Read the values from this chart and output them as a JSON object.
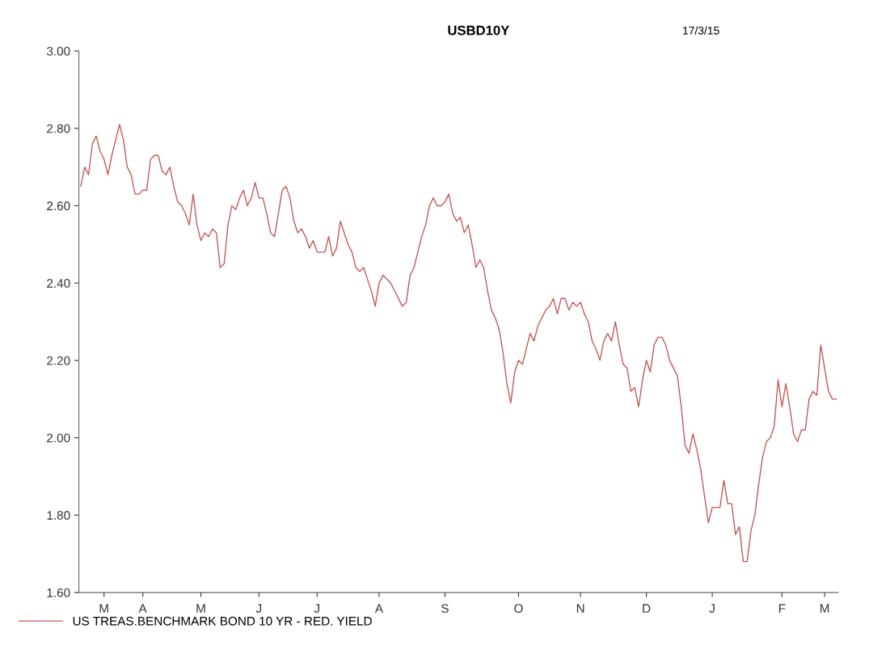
{
  "chart_data": {
    "type": "line",
    "title": "USBD10Y",
    "annotations": [
      "17/3/15"
    ],
    "categories": [
      null,
      null,
      null,
      null,
      null,
      null,
      "M",
      null,
      null,
      null,
      null,
      null,
      null,
      null,
      null,
      null,
      "A",
      null,
      null,
      null,
      null,
      null,
      null,
      null,
      null,
      null,
      null,
      null,
      null,
      null,
      null,
      "M",
      null,
      null,
      null,
      null,
      null,
      null,
      null,
      null,
      null,
      null,
      null,
      null,
      null,
      null,
      "J",
      null,
      null,
      null,
      null,
      null,
      null,
      null,
      null,
      null,
      null,
      null,
      null,
      null,
      null,
      "J",
      null,
      null,
      null,
      null,
      null,
      null,
      null,
      null,
      null,
      null,
      null,
      null,
      null,
      null,
      null,
      "A",
      null,
      null,
      null,
      null,
      null,
      null,
      null,
      null,
      null,
      null,
      null,
      null,
      null,
      null,
      null,
      null,
      "S",
      null,
      null,
      null,
      null,
      null,
      null,
      null,
      null,
      null,
      null,
      null,
      null,
      null,
      null,
      null,
      null,
      null,
      null,
      "O",
      null,
      null,
      null,
      null,
      null,
      null,
      null,
      null,
      null,
      null,
      null,
      null,
      null,
      null,
      null,
      "N",
      null,
      null,
      null,
      null,
      null,
      null,
      null,
      null,
      null,
      null,
      null,
      null,
      null,
      null,
      null,
      null,
      "D",
      null,
      null,
      null,
      null,
      null,
      null,
      null,
      null,
      null,
      null,
      null,
      null,
      null,
      null,
      null,
      null,
      "J",
      null,
      null,
      null,
      null,
      null,
      null,
      null,
      null,
      null,
      null,
      null,
      null,
      null,
      null,
      null,
      null,
      null,
      "F",
      null,
      null,
      null,
      null,
      null,
      null,
      null,
      null,
      null,
      null,
      "M",
      null,
      null,
      null
    ],
    "ylim": [
      1.6,
      3.0
    ],
    "yticks": [
      {
        "value": 1.6,
        "label": "1.60"
      },
      {
        "value": 1.8,
        "label": "1.80"
      },
      {
        "value": 2.0,
        "label": "2.00"
      },
      {
        "value": 2.2,
        "label": "2.20"
      },
      {
        "value": 2.4,
        "label": "2.40"
      },
      {
        "value": 2.6,
        "label": "2.60"
      },
      {
        "value": 2.8,
        "label": "2.80"
      },
      {
        "value": 3.0,
        "label": "3.00"
      }
    ],
    "grid": false,
    "legend": "bottom left",
    "series": [
      {
        "name": "US TREAS.BENCHMARK BOND 10 YR - RED. YIELD",
        "color": "#c55a5a",
        "values": [
          2.65,
          2.7,
          2.68,
          2.76,
          2.78,
          2.74,
          2.72,
          2.68,
          2.73,
          2.77,
          2.81,
          2.77,
          2.7,
          2.68,
          2.63,
          2.63,
          2.64,
          2.64,
          2.72,
          2.73,
          2.73,
          2.69,
          2.68,
          2.7,
          2.65,
          2.61,
          2.6,
          2.58,
          2.55,
          2.63,
          2.55,
          2.51,
          2.53,
          2.52,
          2.54,
          2.53,
          2.44,
          2.45,
          2.55,
          2.6,
          2.59,
          2.62,
          2.64,
          2.6,
          2.62,
          2.66,
          2.62,
          2.62,
          2.58,
          2.53,
          2.52,
          2.58,
          2.64,
          2.65,
          2.62,
          2.56,
          2.53,
          2.54,
          2.52,
          2.49,
          2.51,
          2.48,
          2.48,
          2.48,
          2.52,
          2.47,
          2.49,
          2.56,
          2.53,
          2.5,
          2.48,
          2.44,
          2.43,
          2.44,
          2.41,
          2.38,
          2.34,
          2.4,
          2.42,
          2.41,
          2.4,
          2.38,
          2.36,
          2.34,
          2.35,
          2.42,
          2.44,
          2.48,
          2.52,
          2.55,
          2.6,
          2.62,
          2.6,
          2.6,
          2.61,
          2.63,
          2.58,
          2.56,
          2.57,
          2.53,
          2.55,
          2.5,
          2.44,
          2.46,
          2.44,
          2.38,
          2.33,
          2.31,
          2.28,
          2.22,
          2.14,
          2.09,
          2.17,
          2.2,
          2.19,
          2.23,
          2.27,
          2.25,
          2.29,
          2.31,
          2.33,
          2.34,
          2.36,
          2.32,
          2.36,
          2.36,
          2.33,
          2.35,
          2.34,
          2.35,
          2.32,
          2.3,
          2.25,
          2.23,
          2.2,
          2.25,
          2.27,
          2.25,
          2.3,
          2.24,
          2.19,
          2.18,
          2.12,
          2.13,
          2.08,
          2.15,
          2.2,
          2.17,
          2.24,
          2.26,
          2.26,
          2.24,
          2.2,
          2.18,
          2.16,
          2.08,
          1.98,
          1.96,
          2.01,
          1.97,
          1.92,
          1.85,
          1.78,
          1.82,
          1.82,
          1.82,
          1.89,
          1.83,
          1.83,
          1.75,
          1.77,
          1.68,
          1.68,
          1.76,
          1.8,
          1.88,
          1.95,
          1.99,
          2.0,
          2.03,
          2.15,
          2.08,
          2.14,
          2.08,
          2.01,
          1.99,
          2.02,
          2.02,
          2.1,
          2.12,
          2.11,
          2.24,
          2.18,
          2.12,
          2.1,
          2.1
        ]
      }
    ]
  }
}
